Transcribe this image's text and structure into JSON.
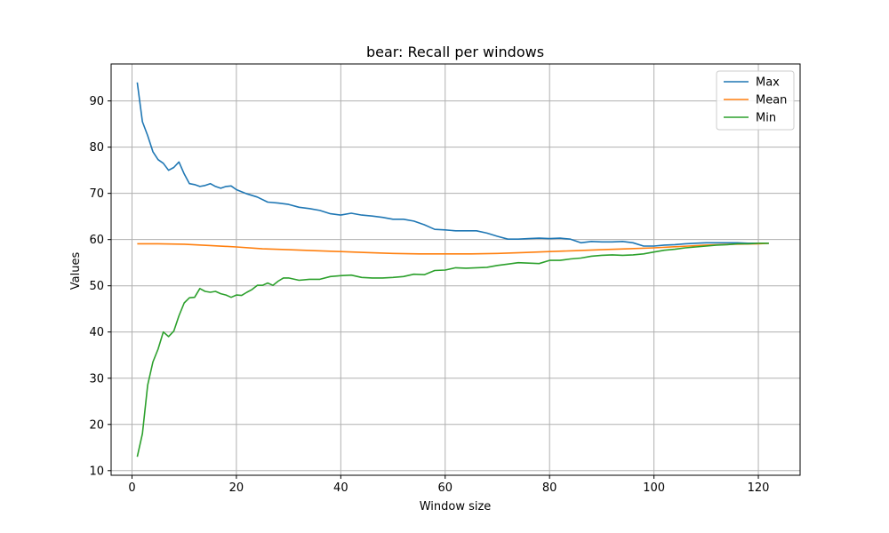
{
  "chart_data": {
    "type": "line",
    "title": "bear: Recall per windows",
    "xlabel": "Window size",
    "ylabel": "Values",
    "xlim": [
      -4,
      128
    ],
    "ylim": [
      9,
      98
    ],
    "xticks": [
      0,
      20,
      40,
      60,
      80,
      100,
      120
    ],
    "yticks": [
      10,
      20,
      30,
      40,
      50,
      60,
      70,
      80,
      90
    ],
    "grid": true,
    "legend_position": "top-right",
    "series": [
      {
        "name": "Max",
        "color": "#1f77b4",
        "x": [
          1,
          2,
          3,
          4,
          5,
          6,
          7,
          8,
          9,
          10,
          11,
          12,
          13,
          14,
          15,
          16,
          17,
          18,
          19,
          20,
          22,
          24,
          26,
          28,
          30,
          32,
          34,
          36,
          38,
          40,
          42,
          44,
          46,
          48,
          50,
          52,
          54,
          56,
          58,
          60,
          62,
          64,
          66,
          68,
          70,
          72,
          74,
          76,
          78,
          80,
          82,
          84,
          86,
          88,
          90,
          92,
          94,
          96,
          98,
          100,
          102,
          104,
          106,
          108,
          110,
          112,
          114,
          116,
          118,
          120,
          122
        ],
        "values": [
          94,
          85.5,
          82.5,
          79,
          77.3,
          76.5,
          75,
          75.6,
          76.8,
          74.2,
          72.1,
          71.9,
          71.5,
          71.7,
          72.1,
          71.5,
          71.1,
          71.5,
          71.6,
          70.8,
          69.9,
          69.2,
          68.1,
          67.9,
          67.6,
          67,
          66.7,
          66.3,
          65.6,
          65.3,
          65.7,
          65.3,
          65.1,
          64.8,
          64.4,
          64.4,
          64,
          63.2,
          62.2,
          62.1,
          61.9,
          61.9,
          61.9,
          61.4,
          60.7,
          60.1,
          60.1,
          60.2,
          60.3,
          60.2,
          60.3,
          60.1,
          59.3,
          59.6,
          59.5,
          59.5,
          59.6,
          59.3,
          58.6,
          58.6,
          58.8,
          58.9,
          59.1,
          59.2,
          59.3,
          59.3,
          59.3,
          59.3,
          59.2,
          59.2,
          59.2
        ]
      },
      {
        "name": "Mean",
        "color": "#ff7f0e",
        "x": [
          1,
          5,
          10,
          15,
          20,
          25,
          30,
          35,
          40,
          45,
          50,
          55,
          60,
          65,
          70,
          75,
          80,
          85,
          90,
          95,
          100,
          105,
          110,
          115,
          120,
          122
        ],
        "values": [
          59.1,
          59.1,
          59,
          58.7,
          58.4,
          58,
          57.8,
          57.6,
          57.4,
          57.2,
          57,
          56.9,
          56.9,
          56.9,
          57,
          57.2,
          57.4,
          57.6,
          57.8,
          58,
          58.2,
          58.5,
          58.8,
          59,
          59.1,
          59.2
        ]
      },
      {
        "name": "Min",
        "color": "#2ca02c",
        "x": [
          1,
          2,
          3,
          4,
          5,
          6,
          7,
          8,
          9,
          10,
          11,
          12,
          13,
          14,
          15,
          16,
          17,
          18,
          19,
          20,
          21,
          22,
          23,
          24,
          25,
          26,
          27,
          28,
          29,
          30,
          32,
          34,
          36,
          38,
          40,
          42,
          44,
          46,
          48,
          50,
          52,
          54,
          56,
          58,
          60,
          62,
          64,
          66,
          68,
          70,
          72,
          74,
          76,
          78,
          80,
          82,
          84,
          86,
          88,
          90,
          92,
          94,
          96,
          98,
          100,
          102,
          104,
          106,
          108,
          110,
          112,
          114,
          116,
          118,
          120,
          122
        ],
        "values": [
          13,
          18,
          28.5,
          33.5,
          36.3,
          40,
          39,
          40.2,
          43.5,
          46.3,
          47.4,
          47.5,
          49.4,
          48.8,
          48.6,
          48.8,
          48.3,
          48,
          47.5,
          48,
          47.9,
          48.6,
          49.2,
          50.1,
          50.1,
          50.6,
          50.1,
          51,
          51.7,
          51.7,
          51.2,
          51.4,
          51.4,
          52,
          52.2,
          52.3,
          51.8,
          51.7,
          51.7,
          51.8,
          52,
          52.5,
          52.4,
          53.3,
          53.4,
          53.9,
          53.8,
          53.9,
          54,
          54.4,
          54.7,
          55,
          54.9,
          54.8,
          55.5,
          55.5,
          55.8,
          56,
          56.4,
          56.6,
          56.7,
          56.6,
          56.7,
          56.9,
          57.3,
          57.7,
          57.9,
          58.2,
          58.4,
          58.6,
          58.8,
          58.9,
          59.1,
          59.1,
          59.2,
          59.2
        ]
      }
    ]
  }
}
